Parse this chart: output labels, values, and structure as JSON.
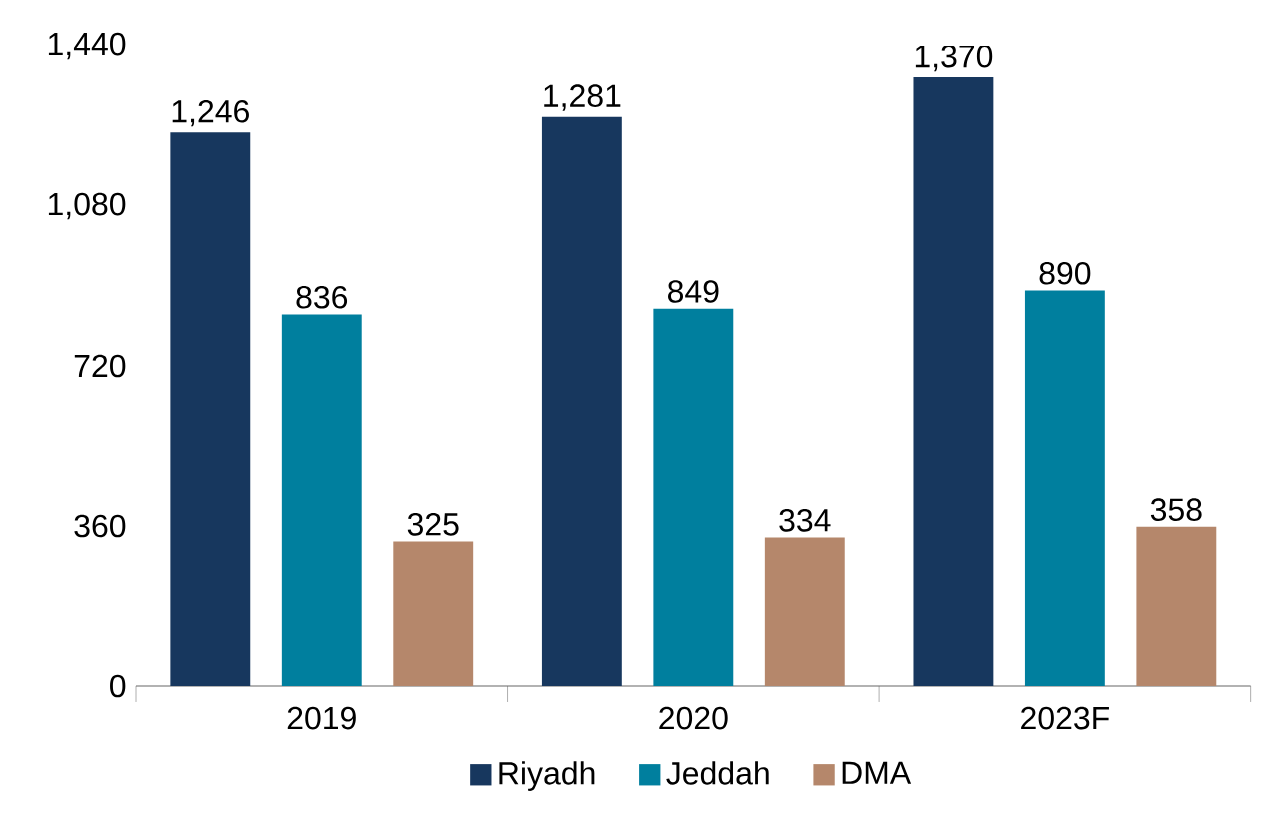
{
  "chart_data": {
    "type": "bar",
    "categories": [
      "2019",
      "2020",
      "2023F"
    ],
    "series": [
      {
        "name": "Riyadh",
        "color": "#17375e",
        "values": [
          1246,
          1281,
          1370
        ],
        "value_labels": [
          "1,246",
          "1,281",
          "1,370"
        ]
      },
      {
        "name": "Jeddah",
        "color": "#007f9e",
        "values": [
          836,
          849,
          890
        ],
        "value_labels": [
          "836",
          "849",
          "890"
        ]
      },
      {
        "name": "DMA",
        "color": "#b5876b",
        "values": [
          325,
          334,
          358
        ],
        "value_labels": [
          "325",
          "334",
          "358"
        ]
      }
    ],
    "ylim": [
      0,
      1440
    ],
    "yticks": [
      {
        "value": 0,
        "label": "0"
      },
      {
        "value": 360,
        "label": "360"
      },
      {
        "value": 720,
        "label": "720"
      },
      {
        "value": 1080,
        "label": "1,080"
      },
      {
        "value": 1440,
        "label": "1,440"
      }
    ],
    "legend": "bottom",
    "grid": false
  }
}
